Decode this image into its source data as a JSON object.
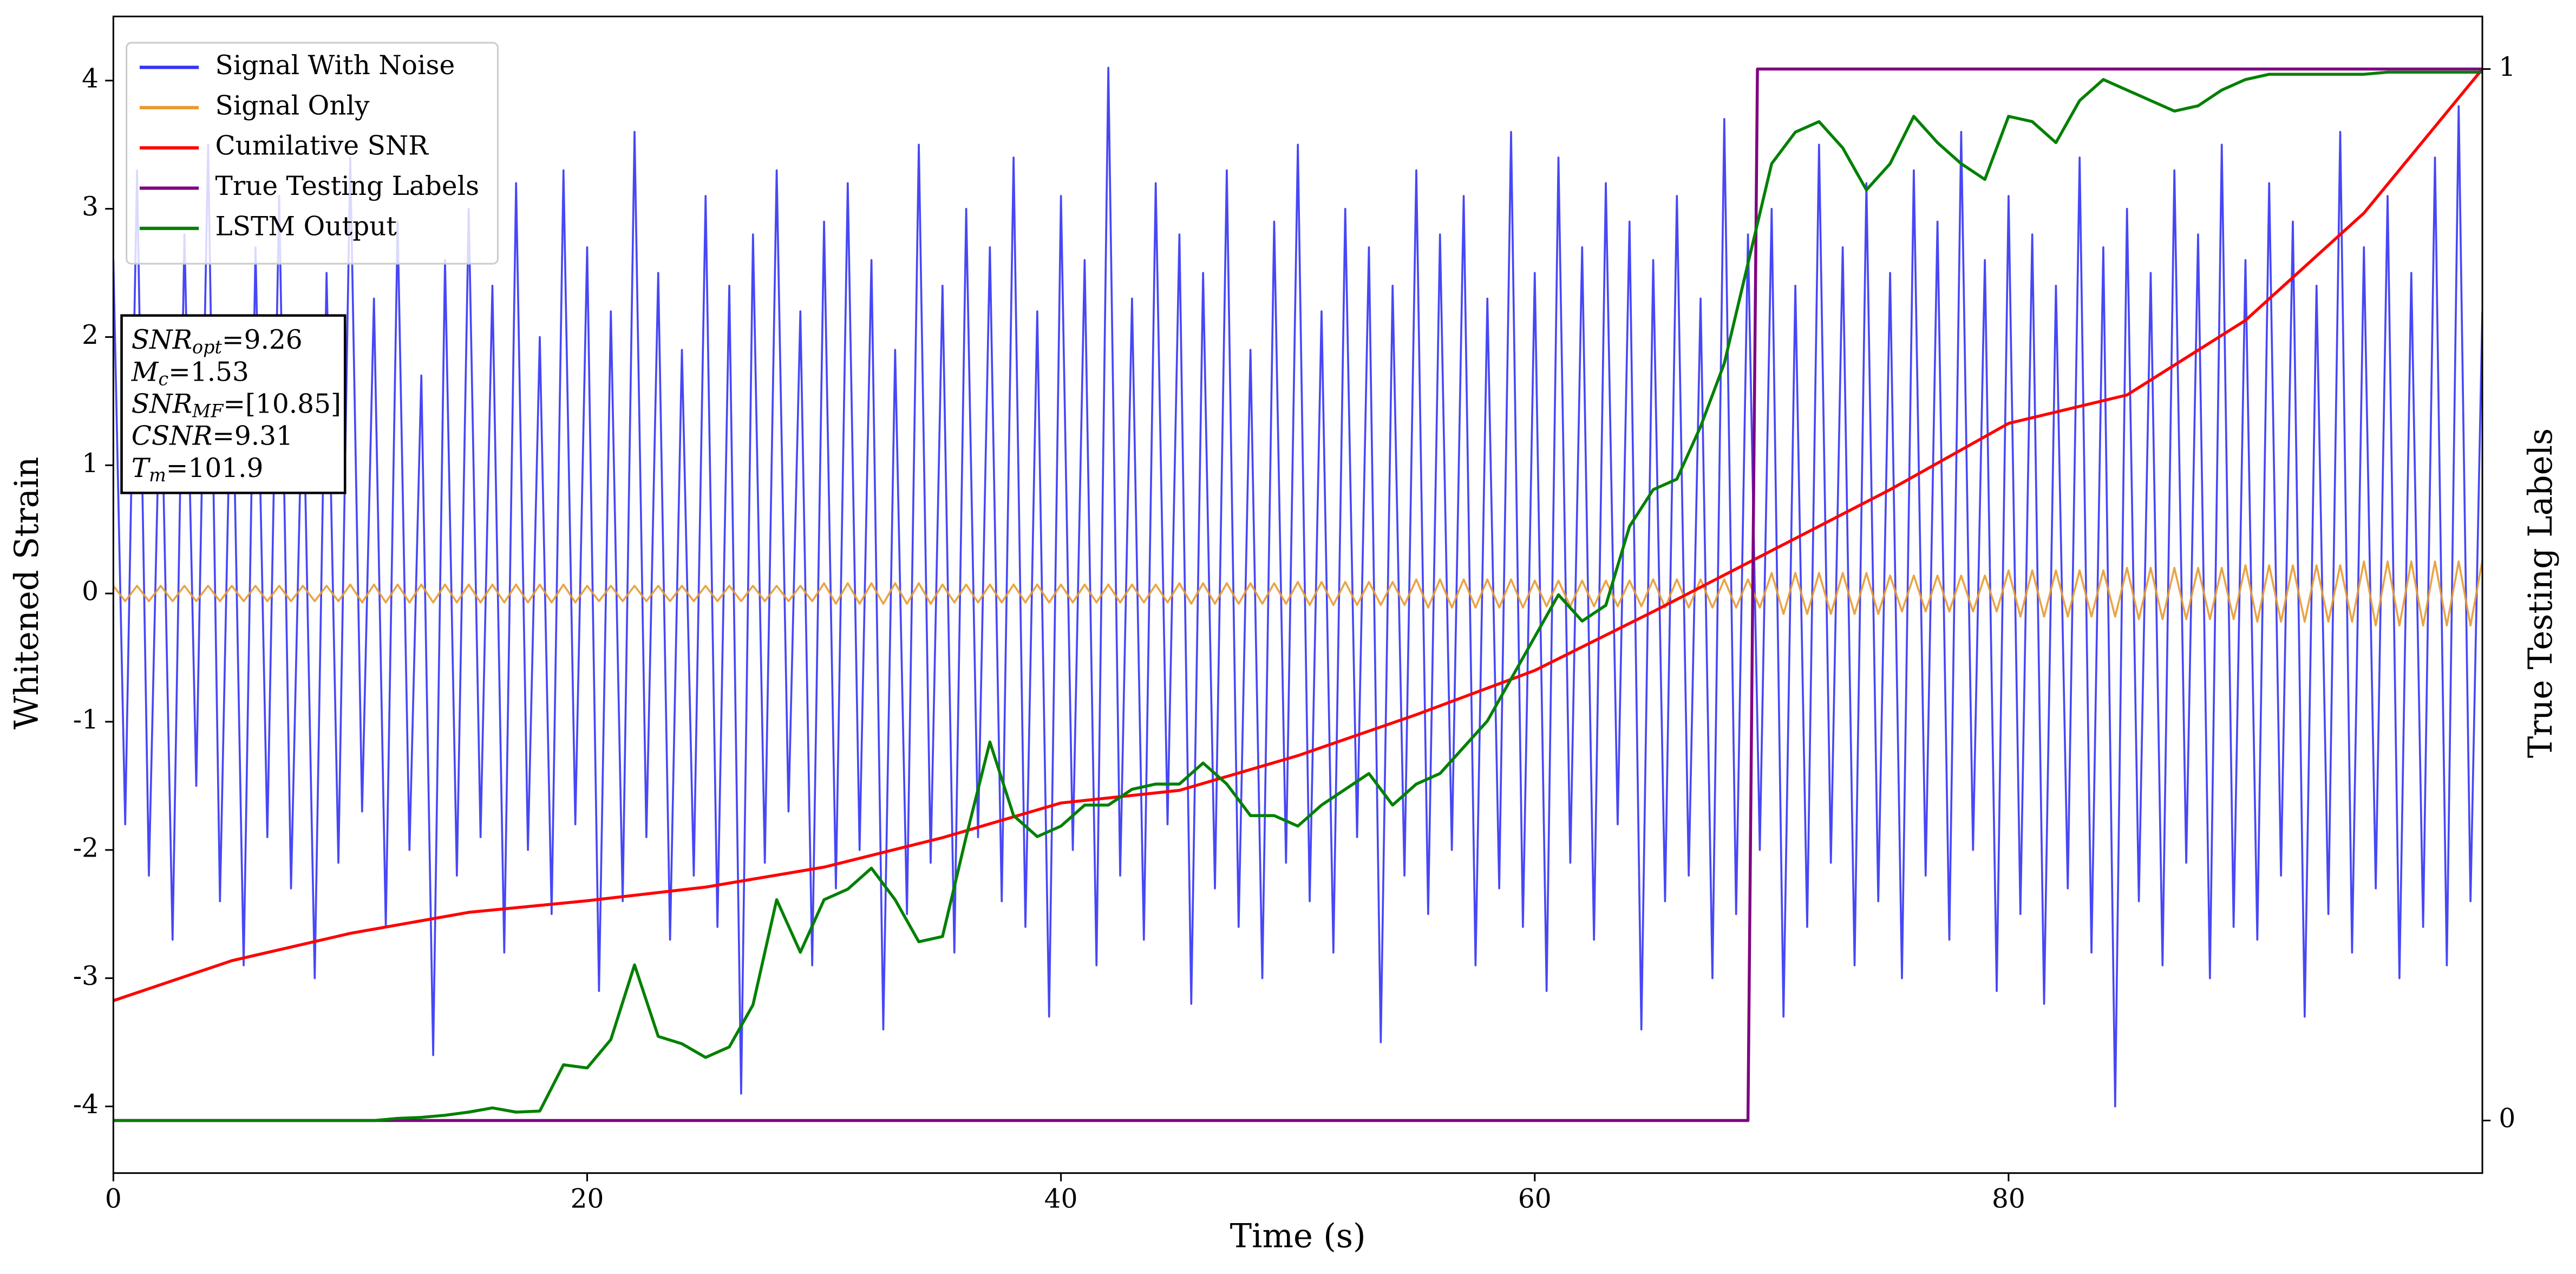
{
  "chart_data": {
    "type": "line",
    "xlabel": "Time (s)",
    "ylabel": "Whitened Strain",
    "y2label": "True Testing Labels",
    "xlim": [
      0,
      100
    ],
    "ylim": [
      -4.52,
      4.5
    ],
    "y2lim": [
      -0.05,
      1.05
    ],
    "xticks": [
      0,
      20,
      40,
      60,
      80
    ],
    "yticks": [
      -4,
      -3,
      -2,
      -1,
      0,
      1,
      2,
      3,
      4
    ],
    "y2ticks": [
      0,
      1
    ],
    "legend": "upper left",
    "x": [
      0,
      0.5,
      1,
      1.5,
      2,
      2.5,
      3,
      3.5,
      4,
      4.5,
      5,
      5.5,
      6,
      6.5,
      7,
      7.5,
      8,
      8.5,
      9,
      9.5,
      10,
      10.5,
      11,
      11.5,
      12,
      12.5,
      13,
      13.5,
      14,
      14.5,
      15,
      15.5,
      16,
      16.5,
      17,
      17.5,
      18,
      18.5,
      19,
      19.5,
      20,
      20.5,
      21,
      21.5,
      22,
      22.5,
      23,
      23.5,
      24,
      24.5,
      25,
      25.5,
      26,
      26.5,
      27,
      27.5,
      28,
      28.5,
      29,
      29.5,
      30,
      30.5,
      31,
      31.5,
      32,
      32.5,
      33,
      33.5,
      34,
      34.5,
      35,
      35.5,
      36,
      36.5,
      37,
      37.5,
      38,
      38.5,
      39,
      39.5,
      40,
      40.5,
      41,
      41.5,
      42,
      42.5,
      43,
      43.5,
      44,
      44.5,
      45,
      45.5,
      46,
      46.5,
      47,
      47.5,
      48,
      48.5,
      49,
      49.5,
      50,
      50.5,
      51,
      51.5,
      52,
      52.5,
      53,
      53.5,
      54,
      54.5,
      55,
      55.5,
      56,
      56.5,
      57,
      57.5,
      58,
      58.5,
      59,
      59.5,
      60,
      60.5,
      61,
      61.5,
      62,
      62.5,
      63,
      63.5,
      64,
      64.5,
      65,
      65.5,
      66,
      66.5,
      67,
      67.5,
      68,
      68.5,
      69,
      69.5,
      70,
      70.5,
      71,
      71.5,
      72,
      72.5,
      73,
      73.5,
      74,
      74.5,
      75,
      75.5,
      76,
      76.5,
      77,
      77.5,
      78,
      78.5,
      79,
      79.5,
      80,
      80.5,
      81,
      81.5,
      82,
      82.5,
      83,
      83.5,
      84,
      84.5,
      85,
      85.5,
      86,
      86.5,
      87,
      87.5,
      88,
      88.5,
      89,
      89.5,
      90,
      90.5,
      91,
      91.5,
      92,
      92.5,
      93,
      93.5,
      94,
      94.5,
      95,
      95.5,
      96,
      96.5,
      97,
      97.5,
      98,
      98.5,
      99,
      99.5,
      100
    ],
    "series": [
      {
        "name": "Signal With Noise",
        "color": "#3333f5",
        "values": [
          2.6,
          -1.8,
          3.3,
          -2.2,
          1.9,
          -2.7,
          2.8,
          -1.5,
          3.5,
          -2.4,
          2.1,
          -2.9,
          2.7,
          -1.9,
          3.1,
          -2.3,
          1.8,
          -3.0,
          2.5,
          -2.1,
          3.4,
          -1.7,
          2.3,
          -2.6,
          2.9,
          -2.0,
          1.7,
          -3.6,
          2.6,
          -2.2,
          3.0,
          -1.9,
          2.4,
          -2.8,
          3.2,
          -2.0,
          2.0,
          -2.5,
          3.3,
          -1.8,
          2.7,
          -3.1,
          2.2,
          -2.4,
          3.6,
          -1.9,
          2.5,
          -2.7,
          1.9,
          -2.2,
          3.1,
          -2.6,
          2.4,
          -3.9,
          2.8,
          -2.1,
          3.3,
          -1.7,
          2.2,
          -2.9,
          2.9,
          -2.3,
          3.2,
          -2.0,
          2.6,
          -3.4,
          1.9,
          -2.5,
          3.5,
          -2.1,
          2.4,
          -2.8,
          3.0,
          -1.9,
          2.7,
          -2.4,
          3.4,
          -2.6,
          2.2,
          -3.3,
          3.1,
          -2.0,
          2.6,
          -2.9,
          4.1,
          -2.2,
          2.3,
          -2.7,
          3.2,
          -1.8,
          2.8,
          -3.2,
          2.5,
          -2.3,
          3.3,
          -2.6,
          1.9,
          -3.0,
          2.9,
          -2.1,
          3.5,
          -2.4,
          2.2,
          -2.8,
          3.0,
          -1.9,
          2.7,
          -3.5,
          2.4,
          -2.2,
          3.3,
          -2.5,
          2.8,
          -2.0,
          3.1,
          -2.9,
          2.3,
          -2.3,
          3.6,
          -2.6,
          2.5,
          -3.1,
          3.4,
          -2.1,
          2.7,
          -2.7,
          3.2,
          -1.8,
          2.9,
          -3.4,
          2.6,
          -2.4,
          3.1,
          -2.2,
          2.3,
          -3.0,
          3.7,
          -2.5,
          2.8,
          -2.0,
          3.0,
          -3.3,
          2.4,
          -2.6,
          3.5,
          -2.1,
          2.7,
          -2.9,
          3.2,
          -2.4,
          2.5,
          -3.0,
          3.3,
          -2.2,
          2.9,
          -2.7,
          3.6,
          -2.0,
          2.6,
          -3.1,
          3.1,
          -2.5,
          2.8,
          -3.2,
          2.4,
          -2.3,
          3.4,
          -2.8,
          2.7,
          -4.0,
          3.0,
          -2.4,
          2.5,
          -2.9,
          3.3,
          -2.1,
          2.8,
          -3.0,
          3.5,
          -2.6,
          2.6,
          -2.7,
          3.2,
          -2.2,
          2.9,
          -3.3,
          2.4,
          -2.5,
          3.6,
          -2.8,
          2.7,
          -2.3,
          3.1,
          -3.0,
          2.5,
          -2.6,
          3.4,
          -2.9,
          3.8,
          -2.4,
          2.2
        ]
      },
      {
        "name": "Signal Only",
        "color": "#e89a30",
        "values": [
          0.06,
          -0.06,
          0.06,
          -0.06,
          0.06,
          -0.06,
          0.06,
          -0.06,
          0.06,
          -0.06,
          0.06,
          -0.06,
          0.06,
          -0.06,
          0.06,
          -0.06,
          0.06,
          -0.06,
          0.06,
          -0.06,
          0.07,
          -0.07,
          0.07,
          -0.07,
          0.07,
          -0.07,
          0.07,
          -0.07,
          0.07,
          -0.07,
          0.07,
          -0.07,
          0.07,
          -0.07,
          0.07,
          -0.07,
          0.07,
          -0.07,
          0.07,
          -0.07,
          0.06,
          -0.06,
          0.06,
          -0.06,
          0.06,
          -0.06,
          0.06,
          -0.06,
          0.06,
          -0.06,
          0.06,
          -0.06,
          0.06,
          -0.06,
          0.06,
          -0.06,
          0.06,
          -0.06,
          0.06,
          -0.06,
          0.08,
          -0.08,
          0.08,
          -0.08,
          0.08,
          -0.08,
          0.08,
          -0.08,
          0.08,
          -0.08,
          0.07,
          -0.07,
          0.07,
          -0.07,
          0.07,
          -0.07,
          0.07,
          -0.07,
          0.07,
          -0.07,
          0.07,
          -0.07,
          0.07,
          -0.07,
          0.07,
          -0.07,
          0.07,
          -0.07,
          0.07,
          -0.07,
          0.08,
          -0.08,
          0.08,
          -0.08,
          0.08,
          -0.08,
          0.08,
          -0.08,
          0.08,
          -0.08,
          0.09,
          -0.09,
          0.09,
          -0.09,
          0.09,
          -0.09,
          0.09,
          -0.09,
          0.09,
          -0.09,
          0.11,
          -0.11,
          0.11,
          -0.11,
          0.11,
          -0.11,
          0.11,
          -0.11,
          0.11,
          -0.11,
          0.1,
          -0.1,
          0.1,
          -0.1,
          0.1,
          -0.1,
          0.1,
          -0.1,
          0.1,
          -0.1,
          0.11,
          -0.11,
          0.11,
          -0.11,
          0.11,
          -0.11,
          0.11,
          -0.11,
          0.11,
          -0.11,
          0.16,
          -0.16,
          0.16,
          -0.16,
          0.16,
          -0.16,
          0.16,
          -0.16,
          0.16,
          -0.16,
          0.14,
          -0.14,
          0.14,
          -0.14,
          0.14,
          -0.14,
          0.14,
          -0.14,
          0.14,
          -0.14,
          0.18,
          -0.18,
          0.18,
          -0.18,
          0.18,
          -0.18,
          0.18,
          -0.18,
          0.18,
          -0.18,
          0.2,
          -0.2,
          0.2,
          -0.2,
          0.2,
          -0.2,
          0.2,
          -0.2,
          0.2,
          -0.2,
          0.22,
          -0.22,
          0.22,
          -0.22,
          0.22,
          -0.22,
          0.22,
          -0.22,
          0.22,
          -0.22,
          0.25,
          -0.25,
          0.25,
          -0.25,
          0.25,
          -0.25,
          0.25,
          -0.25,
          0.25,
          -0.25,
          0.26
        ]
      },
      {
        "name": "Cumilative SNR",
        "color": "#ff0000",
        "axis": "y2",
        "x": [
          0,
          5,
          10,
          15,
          20,
          25,
          30,
          35,
          40,
          45,
          50,
          55,
          60,
          65,
          70,
          75,
          80,
          85,
          90,
          95,
          100
        ],
        "values": [
          0.114,
          0.152,
          0.178,
          0.198,
          0.209,
          0.222,
          0.241,
          0.269,
          0.302,
          0.314,
          0.347,
          0.386,
          0.428,
          0.484,
          0.542,
          0.6,
          0.663,
          0.69,
          0.761,
          0.863,
          1.0
        ]
      },
      {
        "name": "True Testing Labels",
        "color": "#800080",
        "axis": "y2",
        "x": [
          0,
          69,
          69.4,
          100
        ],
        "values": [
          0,
          0,
          1,
          1
        ]
      },
      {
        "name": "LSTM Output",
        "color": "#008000",
        "axis": "y2",
        "x": [
          0,
          1,
          2,
          3,
          4,
          5,
          6,
          7,
          8,
          9,
          10,
          11,
          12,
          13,
          14,
          15,
          16,
          17,
          18,
          19,
          20,
          21,
          22,
          23,
          24,
          25,
          26,
          27,
          28,
          29,
          30,
          31,
          32,
          33,
          34,
          35,
          36,
          37,
          38,
          39,
          40,
          41,
          42,
          43,
          44,
          45,
          46,
          47,
          48,
          49,
          50,
          51,
          52,
          53,
          54,
          55,
          56,
          57,
          58,
          59,
          60,
          61,
          62,
          63,
          64,
          65,
          66,
          67,
          68,
          69,
          70,
          71,
          72,
          73,
          74,
          75,
          76,
          77,
          78,
          79,
          80,
          81,
          82,
          83,
          84,
          85,
          86,
          87,
          88,
          89,
          90,
          91,
          92,
          93,
          94,
          95,
          96,
          97,
          98,
          99,
          100
        ],
        "values": [
          0,
          0,
          0,
          0,
          0,
          0,
          0,
          0,
          0,
          0,
          0,
          0,
          0.002,
          0.003,
          0.005,
          0.008,
          0.012,
          0.008,
          0.009,
          0.053,
          0.05,
          0.077,
          0.148,
          0.08,
          0.073,
          0.06,
          0.07,
          0.11,
          0.21,
          0.16,
          0.21,
          0.22,
          0.24,
          0.21,
          0.17,
          0.175,
          0.27,
          0.36,
          0.29,
          0.27,
          0.28,
          0.3,
          0.3,
          0.315,
          0.32,
          0.32,
          0.34,
          0.32,
          0.29,
          0.29,
          0.28,
          0.3,
          0.315,
          0.33,
          0.3,
          0.32,
          0.33,
          0.355,
          0.38,
          0.42,
          0.46,
          0.5,
          0.475,
          0.49,
          0.565,
          0.6,
          0.61,
          0.66,
          0.72,
          0.815,
          0.91,
          0.94,
          0.95,
          0.925,
          0.885,
          0.91,
          0.955,
          0.93,
          0.91,
          0.895,
          0.955,
          0.95,
          0.93,
          0.97,
          0.99,
          0.98,
          0.97,
          0.96,
          0.965,
          0.98,
          0.99,
          0.995,
          0.995,
          0.995,
          0.995,
          0.995,
          0.997,
          0.997,
          0.997,
          0.997,
          0.997
        ]
      }
    ],
    "annotations": [
      {
        "symbol": "SNR",
        "subscript": "opt",
        "text": "=9.26"
      },
      {
        "symbol": "M",
        "subscript": "c",
        "text": "=1.53"
      },
      {
        "symbol": "SNR",
        "subscript": "MF",
        "text": "=[10.85]"
      },
      {
        "symbol": "CSNR",
        "text": "=9.31"
      },
      {
        "symbol": "T",
        "subscript": "m",
        "text": "=101.9"
      }
    ]
  }
}
